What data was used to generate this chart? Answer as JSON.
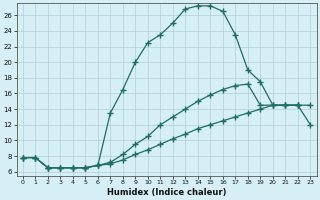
{
  "xlabel": "Humidex (Indice chaleur)",
  "xlim": [
    -0.5,
    23.5
  ],
  "ylim": [
    5.5,
    27.5
  ],
  "xticks": [
    0,
    1,
    2,
    3,
    4,
    5,
    6,
    7,
    8,
    9,
    10,
    11,
    12,
    13,
    14,
    15,
    16,
    17,
    18,
    19,
    20,
    21,
    22,
    23
  ],
  "yticks": [
    6,
    8,
    10,
    12,
    14,
    16,
    18,
    20,
    22,
    24,
    26
  ],
  "bg_color": "#d6eef5",
  "grid_color": "#b0cdd8",
  "line_color": "#1e6e66",
  "line1_x": [
    0,
    1,
    2,
    3,
    4,
    5,
    6,
    7,
    8,
    9,
    10,
    11,
    12,
    13,
    14,
    15,
    16,
    17,
    18,
    19,
    20,
    21,
    22
  ],
  "line1_y": [
    7.8,
    7.8,
    6.5,
    6.5,
    6.5,
    6.5,
    6.8,
    13.5,
    16.5,
    20.0,
    22.5,
    23.5,
    25.0,
    26.8,
    27.2,
    27.2,
    26.5,
    23.5,
    19.0,
    17.5,
    14.5,
    14.5,
    14.5
  ],
  "line2_x": [
    0,
    1,
    2,
    3,
    4,
    5,
    6,
    7,
    8,
    9,
    10,
    11,
    12,
    13,
    14,
    15,
    16,
    17,
    18,
    19,
    20,
    21,
    22,
    23
  ],
  "line2_y": [
    7.8,
    7.8,
    6.5,
    6.5,
    6.5,
    6.5,
    6.8,
    7.2,
    8.2,
    9.5,
    10.5,
    12.0,
    13.0,
    14.0,
    15.0,
    15.8,
    16.5,
    17.0,
    17.2,
    14.5,
    14.5,
    14.5,
    14.5,
    14.5
  ],
  "line3_x": [
    0,
    1,
    2,
    3,
    4,
    5,
    6,
    7,
    8,
    9,
    10,
    11,
    12,
    13,
    14,
    15,
    16,
    17,
    18,
    19,
    20,
    21,
    22,
    23
  ],
  "line3_y": [
    7.8,
    7.8,
    6.5,
    6.5,
    6.5,
    6.5,
    6.8,
    7.0,
    7.5,
    8.2,
    8.8,
    9.5,
    10.2,
    10.8,
    11.5,
    12.0,
    12.5,
    13.0,
    13.5,
    14.0,
    14.5,
    14.5,
    14.5,
    12.0
  ]
}
